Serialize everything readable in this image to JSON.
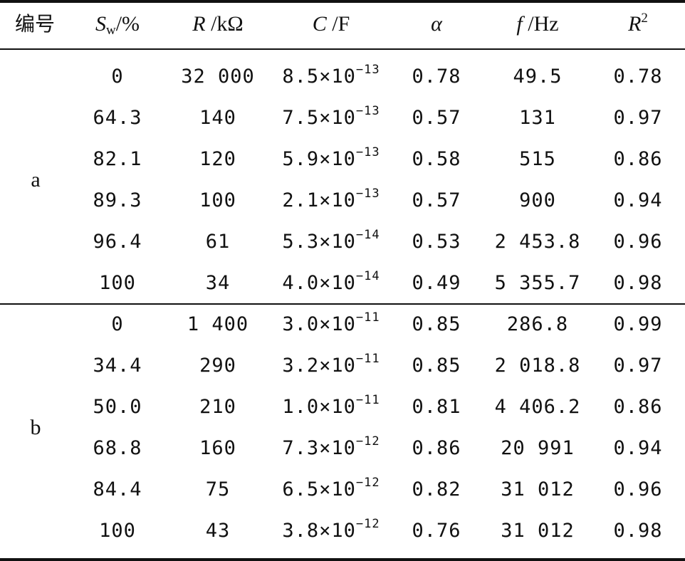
{
  "header": {
    "id": "编号",
    "sw_sym": "S",
    "sw_sub": "w",
    "sw_unit": "/%",
    "r_sym": "R",
    "r_unit": " /kΩ",
    "c_sym": "C",
    "c_unit": " /F",
    "alpha": "α",
    "f_sym": "f",
    "f_unit": " /Hz",
    "r2_sym": "R",
    "r2_sup": "2"
  },
  "groups": [
    {
      "label": "a",
      "rows": [
        {
          "sw": "0",
          "r": "32 000",
          "c_base": "8.5×10",
          "c_exp": "−13",
          "alpha": "0.78",
          "f": "49.5",
          "r2": "0.78"
        },
        {
          "sw": "64.3",
          "r": "140",
          "c_base": "7.5×10",
          "c_exp": "−13",
          "alpha": "0.57",
          "f": "131",
          "r2": "0.97"
        },
        {
          "sw": "82.1",
          "r": "120",
          "c_base": "5.9×10",
          "c_exp": "−13",
          "alpha": "0.58",
          "f": "515",
          "r2": "0.86"
        },
        {
          "sw": "89.3",
          "r": "100",
          "c_base": "2.1×10",
          "c_exp": "−13",
          "alpha": "0.57",
          "f": "900",
          "r2": "0.94"
        },
        {
          "sw": "96.4",
          "r": "61",
          "c_base": "5.3×10",
          "c_exp": "−14",
          "alpha": "0.53",
          "f": "2 453.8",
          "r2": "0.96"
        },
        {
          "sw": "100",
          "r": "34",
          "c_base": "4.0×10",
          "c_exp": "−14",
          "alpha": "0.49",
          "f": "5 355.7",
          "r2": "0.98"
        }
      ]
    },
    {
      "label": "b",
      "rows": [
        {
          "sw": "0",
          "r": "1 400",
          "c_base": "3.0×10",
          "c_exp": "−11",
          "alpha": "0.85",
          "f": "286.8",
          "r2": "0.99"
        },
        {
          "sw": "34.4",
          "r": "290",
          "c_base": "3.2×10",
          "c_exp": "−11",
          "alpha": "0.85",
          "f": "2 018.8",
          "r2": "0.97"
        },
        {
          "sw": "50.0",
          "r": "210",
          "c_base": "1.0×10",
          "c_exp": "−11",
          "alpha": "0.81",
          "f": "4 406.2",
          "r2": "0.86"
        },
        {
          "sw": "68.8",
          "r": "160",
          "c_base": "7.3×10",
          "c_exp": "−12",
          "alpha": "0.86",
          "f": "20 991",
          "r2": "0.94"
        },
        {
          "sw": "84.4",
          "r": "75",
          "c_base": "6.5×10",
          "c_exp": "−12",
          "alpha": "0.82",
          "f": "31 012",
          "r2": "0.96"
        },
        {
          "sw": "100",
          "r": "43",
          "c_base": "3.8×10",
          "c_exp": "−12",
          "alpha": "0.76",
          "f": "31 012",
          "r2": "0.98"
        }
      ]
    }
  ]
}
